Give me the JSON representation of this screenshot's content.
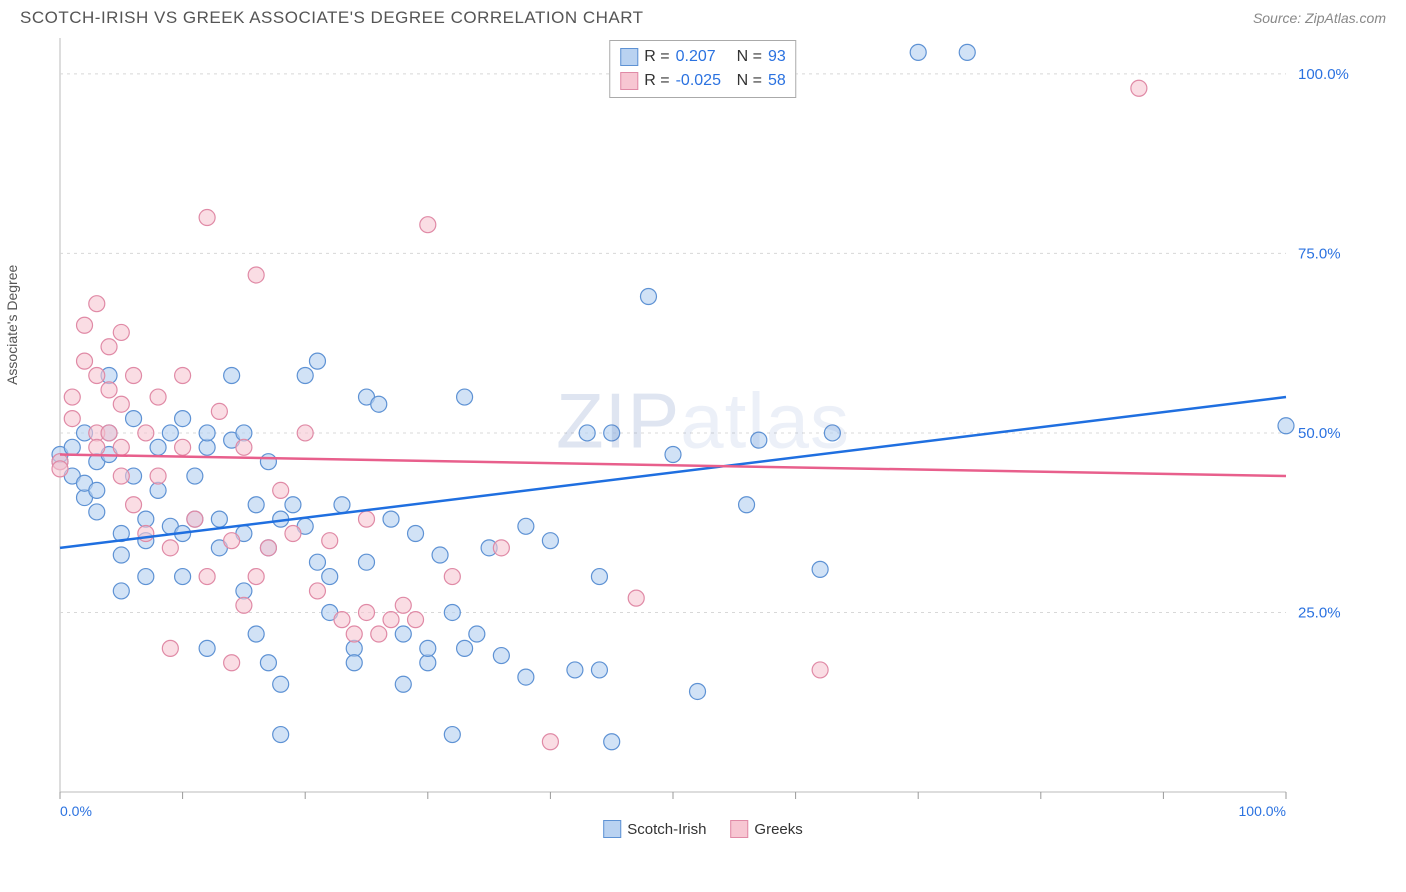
{
  "header": {
    "title": "SCOTCH-IRISH VS GREEK ASSOCIATE'S DEGREE CORRELATION CHART",
    "source": "Source: ZipAtlas.com"
  },
  "y_axis_label": "Associate's Degree",
  "watermark": {
    "zip": "ZIP",
    "rest": "atlas"
  },
  "chart": {
    "type": "scatter",
    "xlim": [
      0,
      100
    ],
    "ylim": [
      0,
      105
    ],
    "x_ticks": [
      0,
      10,
      20,
      30,
      40,
      50,
      60,
      70,
      80,
      90,
      100
    ],
    "x_tick_labels": {
      "0": "0.0%",
      "100": "100.0%"
    },
    "y_ticks": [
      25,
      50,
      75,
      100
    ],
    "y_tick_labels": {
      "25": "25.0%",
      "50": "50.0%",
      "75": "75.0%",
      "100": "100.0%"
    },
    "background_color": "#ffffff",
    "grid_color": "#d8d8d8",
    "plot_border_color": "#bbbbbb",
    "marker_radius": 8,
    "series": [
      {
        "name": "Scotch-Irish",
        "fill": "#b9d2f1",
        "stroke": "#5e92d4",
        "fill_opacity": 0.65,
        "legend_sw_fill": "#b9d2f1",
        "legend_sw_border": "#5e92d4",
        "trendline": {
          "color": "#1f6fe0",
          "width": 2.5,
          "x1": 0,
          "y1": 34,
          "x2": 100,
          "y2": 55
        },
        "stats": {
          "R": "0.207",
          "N": "93"
        },
        "points": [
          [
            0,
            46
          ],
          [
            0,
            47
          ],
          [
            1,
            48
          ],
          [
            1,
            44
          ],
          [
            2,
            41
          ],
          [
            2,
            50
          ],
          [
            2,
            43
          ],
          [
            3,
            46
          ],
          [
            3,
            42
          ],
          [
            3,
            39
          ],
          [
            4,
            50
          ],
          [
            4,
            47
          ],
          [
            4,
            58
          ],
          [
            5,
            36
          ],
          [
            5,
            33
          ],
          [
            5,
            28
          ],
          [
            6,
            52
          ],
          [
            6,
            44
          ],
          [
            7,
            38
          ],
          [
            7,
            35
          ],
          [
            7,
            30
          ],
          [
            8,
            48
          ],
          [
            8,
            42
          ],
          [
            9,
            50
          ],
          [
            9,
            37
          ],
          [
            10,
            36
          ],
          [
            10,
            30
          ],
          [
            10,
            52
          ],
          [
            11,
            44
          ],
          [
            11,
            38
          ],
          [
            12,
            48
          ],
          [
            12,
            50
          ],
          [
            12,
            20
          ],
          [
            13,
            38
          ],
          [
            13,
            34
          ],
          [
            14,
            58
          ],
          [
            14,
            49
          ],
          [
            15,
            36
          ],
          [
            15,
            50
          ],
          [
            15,
            28
          ],
          [
            16,
            40
          ],
          [
            16,
            22
          ],
          [
            17,
            34
          ],
          [
            17,
            46
          ],
          [
            17,
            18
          ],
          [
            18,
            38
          ],
          [
            18,
            15
          ],
          [
            18,
            8
          ],
          [
            19,
            40
          ],
          [
            20,
            37
          ],
          [
            20,
            58
          ],
          [
            21,
            60
          ],
          [
            21,
            32
          ],
          [
            22,
            30
          ],
          [
            22,
            25
          ],
          [
            23,
            40
          ],
          [
            24,
            20
          ],
          [
            24,
            18
          ],
          [
            25,
            55
          ],
          [
            25,
            32
          ],
          [
            26,
            54
          ],
          [
            27,
            38
          ],
          [
            28,
            22
          ],
          [
            28,
            15
          ],
          [
            29,
            36
          ],
          [
            30,
            18
          ],
          [
            30,
            20
          ],
          [
            31,
            33
          ],
          [
            32,
            25
          ],
          [
            32,
            8
          ],
          [
            33,
            55
          ],
          [
            33,
            20
          ],
          [
            34,
            22
          ],
          [
            35,
            34
          ],
          [
            36,
            19
          ],
          [
            38,
            37
          ],
          [
            38,
            16
          ],
          [
            40,
            35
          ],
          [
            42,
            17
          ],
          [
            43,
            50
          ],
          [
            44,
            30
          ],
          [
            44,
            17
          ],
          [
            45,
            50
          ],
          [
            45,
            7
          ],
          [
            48,
            69
          ],
          [
            50,
            47
          ],
          [
            52,
            14
          ],
          [
            56,
            40
          ],
          [
            57,
            49
          ],
          [
            62,
            31
          ],
          [
            63,
            50
          ],
          [
            70,
            103
          ],
          [
            74,
            103
          ],
          [
            100,
            51
          ]
        ]
      },
      {
        "name": "Greeks",
        "fill": "#f7c6d2",
        "stroke": "#e08aa6",
        "fill_opacity": 0.6,
        "legend_sw_fill": "#f7c6d2",
        "legend_sw_border": "#e08aa6",
        "trendline": {
          "color": "#e85f8c",
          "width": 2.5,
          "x1": 0,
          "y1": 47,
          "x2": 100,
          "y2": 44
        },
        "stats": {
          "R": "-0.025",
          "N": "58"
        },
        "points": [
          [
            0,
            46
          ],
          [
            0,
            45
          ],
          [
            1,
            52
          ],
          [
            1,
            55
          ],
          [
            2,
            60
          ],
          [
            2,
            65
          ],
          [
            3,
            58
          ],
          [
            3,
            50
          ],
          [
            3,
            48
          ],
          [
            3,
            68
          ],
          [
            4,
            62
          ],
          [
            4,
            56
          ],
          [
            4,
            50
          ],
          [
            5,
            48
          ],
          [
            5,
            44
          ],
          [
            5,
            54
          ],
          [
            5,
            64
          ],
          [
            6,
            40
          ],
          [
            6,
            58
          ],
          [
            7,
            50
          ],
          [
            7,
            36
          ],
          [
            8,
            55
          ],
          [
            8,
            44
          ],
          [
            9,
            34
          ],
          [
            9,
            20
          ],
          [
            10,
            58
          ],
          [
            10,
            48
          ],
          [
            11,
            38
          ],
          [
            12,
            80
          ],
          [
            12,
            30
          ],
          [
            13,
            53
          ],
          [
            14,
            35
          ],
          [
            14,
            18
          ],
          [
            15,
            26
          ],
          [
            15,
            48
          ],
          [
            16,
            72
          ],
          [
            16,
            30
          ],
          [
            17,
            34
          ],
          [
            18,
            42
          ],
          [
            19,
            36
          ],
          [
            20,
            50
          ],
          [
            21,
            28
          ],
          [
            22,
            35
          ],
          [
            23,
            24
          ],
          [
            24,
            22
          ],
          [
            25,
            38
          ],
          [
            25,
            25
          ],
          [
            26,
            22
          ],
          [
            27,
            24
          ],
          [
            28,
            26
          ],
          [
            29,
            24
          ],
          [
            30,
            79
          ],
          [
            32,
            30
          ],
          [
            36,
            34
          ],
          [
            40,
            7
          ],
          [
            47,
            27
          ],
          [
            62,
            17
          ],
          [
            88,
            98
          ]
        ]
      }
    ]
  },
  "legend_top": {
    "rlabel": "R =",
    "nlabel": "N ="
  },
  "legend_bottom": {
    "items": [
      "Scotch-Irish",
      "Greeks"
    ]
  }
}
